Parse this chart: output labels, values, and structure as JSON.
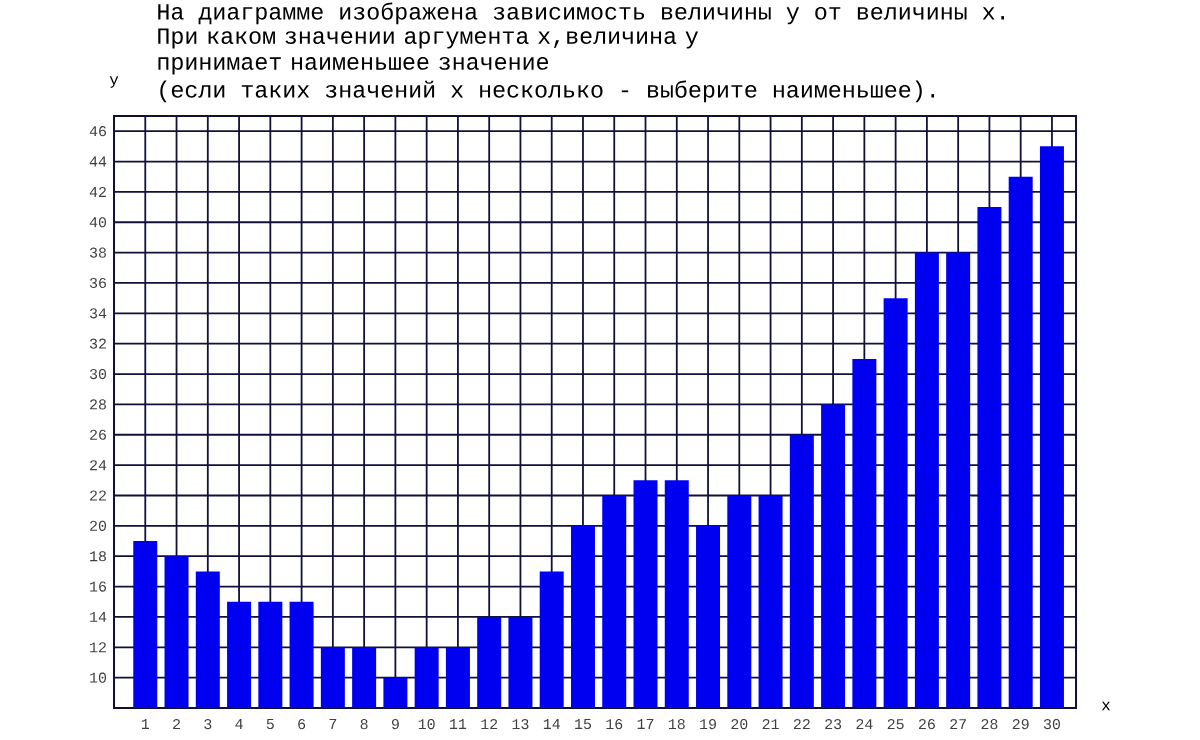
{
  "chart_data": {
    "type": "bar",
    "title": "На диаграмме изображена зависимость величины y от величины x.",
    "subtitle": "При каком значении аргумента x,величина y принимает наименьшее значение",
    "annotations": [
      "(если таких значений x несколько - выберите наименьшее)."
    ],
    "xlabel": "x",
    "ylabel": "y",
    "categories": [
      "1",
      "2",
      "3",
      "4",
      "5",
      "6",
      "7",
      "8",
      "9",
      "10",
      "11",
      "12",
      "13",
      "14",
      "15",
      "16",
      "17",
      "18",
      "19",
      "20",
      "21",
      "22",
      "23",
      "24",
      "25",
      "26",
      "27",
      "28",
      "29",
      "30"
    ],
    "values": [
      19,
      18,
      17,
      15,
      15,
      15,
      12,
      12,
      10,
      12,
      12,
      14,
      14,
      17,
      20,
      22,
      23,
      23,
      20,
      22,
      22,
      26,
      28,
      31,
      35,
      38,
      38,
      41,
      43,
      45
    ],
    "color": "#0000f0",
    "ylim": [
      8,
      47
    ],
    "yticks": [
      10,
      12,
      14,
      16,
      18,
      20,
      22,
      24,
      26,
      28,
      30,
      32,
      34,
      36,
      38,
      40,
      42,
      44,
      46
    ],
    "grid": true
  }
}
